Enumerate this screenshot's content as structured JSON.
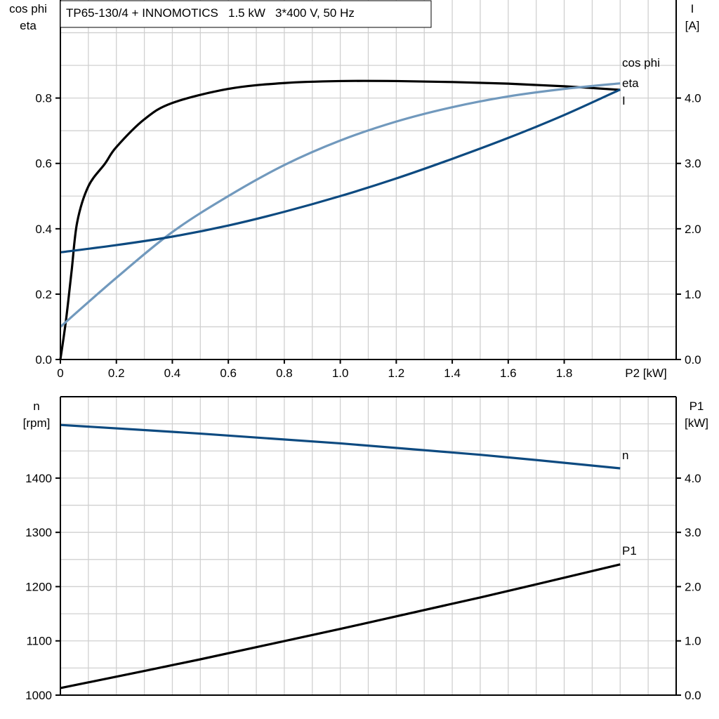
{
  "title": "TP65-130/4 + INNOMOTICS   1.5 kW   3*400 V, 50 Hz",
  "colors": {
    "eta": "#000000",
    "cos_phi": "#7199bd",
    "I": "#0d4a80",
    "n": "#0d4a80",
    "P1": "#000000",
    "grid": "#d0d0d0"
  },
  "chart_data": [
    {
      "type": "line",
      "xlabel": "P2 [kW]",
      "ylabel_left": [
        "cos phi",
        "eta"
      ],
      "ylabel_right": [
        "I",
        "[A]"
      ],
      "xlim": [
        0,
        2.2
      ],
      "ylim_left": [
        0,
        1.1
      ],
      "ylim_right": [
        0,
        5.5
      ],
      "grid": true,
      "x_ticks": [
        "0",
        "0.2",
        "0.4",
        "0.6",
        "0.8",
        "1.0",
        "1.2",
        "1.4",
        "1.6",
        "1.8"
      ],
      "y_ticks_left": [
        "0.0",
        "0.2",
        "0.4",
        "0.6",
        "0.8"
      ],
      "y_ticks_right": [
        "0.0",
        "1.0",
        "2.0",
        "3.0",
        "4.0"
      ],
      "series": [
        {
          "name": "eta",
          "axis": "left",
          "x": [
            0,
            0.02,
            0.04,
            0.06,
            0.1,
            0.16,
            0.2,
            0.3,
            0.4,
            0.6,
            0.8,
            1.0,
            1.2,
            1.4,
            1.6,
            1.8,
            2.0
          ],
          "y": [
            0,
            0.12,
            0.27,
            0.42,
            0.53,
            0.6,
            0.65,
            0.735,
            0.785,
            0.828,
            0.846,
            0.852,
            0.852,
            0.849,
            0.844,
            0.836,
            0.825
          ]
        },
        {
          "name": "cos phi",
          "axis": "left",
          "x": [
            0,
            0.2,
            0.4,
            0.6,
            0.8,
            1.0,
            1.2,
            1.4,
            1.6,
            1.8,
            2.0
          ],
          "y": [
            0.1,
            0.25,
            0.39,
            0.5,
            0.595,
            0.67,
            0.728,
            0.772,
            0.805,
            0.828,
            0.845
          ]
        },
        {
          "name": "I",
          "axis": "right",
          "x": [
            0,
            0.2,
            0.4,
            0.6,
            0.8,
            1.0,
            1.2,
            1.4,
            1.6,
            1.8,
            2.0
          ],
          "y": [
            1.64,
            1.75,
            1.88,
            2.05,
            2.26,
            2.5,
            2.77,
            3.07,
            3.39,
            3.74,
            4.13
          ]
        }
      ]
    },
    {
      "type": "line",
      "ylabel_left": [
        "n",
        "[rpm]"
      ],
      "ylabel_right": [
        "P1",
        "[kW]"
      ],
      "xlim": [
        0,
        2.2
      ],
      "ylim_left": [
        1000,
        1550
      ],
      "ylim_right": [
        0,
        5.5
      ],
      "grid": true,
      "y_ticks_left": [
        "1000",
        "1100",
        "1200",
        "1300",
        "1400"
      ],
      "y_ticks_right": [
        "0.0",
        "1.0",
        "2.0",
        "3.0",
        "4.0"
      ],
      "series": [
        {
          "name": "n",
          "axis": "left",
          "x": [
            0,
            0.5,
            1.0,
            1.5,
            2.0
          ],
          "y": [
            1498,
            1482,
            1464,
            1443,
            1418
          ]
        },
        {
          "name": "P1",
          "axis": "right",
          "x": [
            0,
            0.5,
            1.0,
            1.5,
            2.0
          ],
          "y": [
            0.13,
            0.66,
            1.22,
            1.8,
            2.41
          ]
        }
      ]
    }
  ]
}
